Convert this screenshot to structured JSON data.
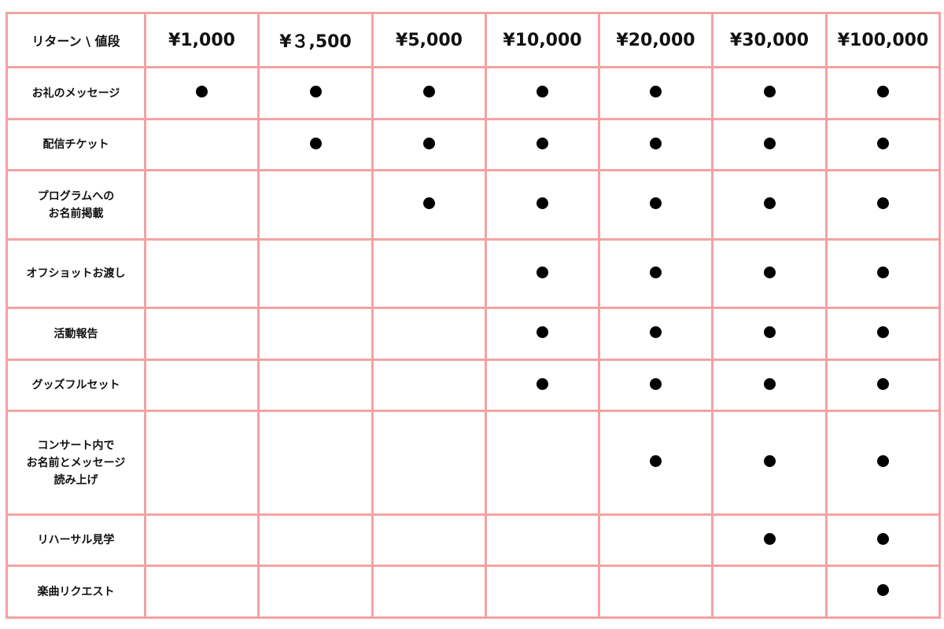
{
  "table": {
    "corner_label": "リターン \\ 値段",
    "columns": [
      "¥1,000",
      "¥３,500",
      "¥5,000",
      "¥10,000",
      "¥20,000",
      "¥30,000",
      "¥100,000"
    ],
    "rows": [
      {
        "label": [
          "お礼のメッセージ"
        ],
        "included": [
          true,
          true,
          true,
          true,
          true,
          true,
          true
        ]
      },
      {
        "label": [
          "配信チケット"
        ],
        "included": [
          false,
          true,
          true,
          true,
          true,
          true,
          true
        ]
      },
      {
        "label": [
          "プログラムへの",
          "お名前掲載"
        ],
        "included": [
          false,
          false,
          true,
          true,
          true,
          true,
          true
        ]
      },
      {
        "label": [
          "オフショットお渡し"
        ],
        "included": [
          false,
          false,
          false,
          true,
          true,
          true,
          true
        ]
      },
      {
        "label": [
          "活動報告"
        ],
        "included": [
          false,
          false,
          false,
          true,
          true,
          true,
          true
        ]
      },
      {
        "label": [
          "グッズフルセット"
        ],
        "included": [
          false,
          false,
          false,
          true,
          true,
          true,
          true
        ]
      },
      {
        "label": [
          "コンサート内で",
          "お名前とメッセージ",
          "読み上げ"
        ],
        "included": [
          false,
          false,
          false,
          false,
          true,
          true,
          true
        ]
      },
      {
        "label": [
          "リハーサル見学"
        ],
        "included": [
          false,
          false,
          false,
          false,
          false,
          true,
          true
        ]
      },
      {
        "label": [
          "楽曲リクエスト"
        ],
        "included": [
          false,
          false,
          false,
          false,
          false,
          false,
          true
        ]
      }
    ],
    "mark_symbol": "filled-circle",
    "border_color": "#f4a2a2",
    "mark_color": "#000000"
  }
}
